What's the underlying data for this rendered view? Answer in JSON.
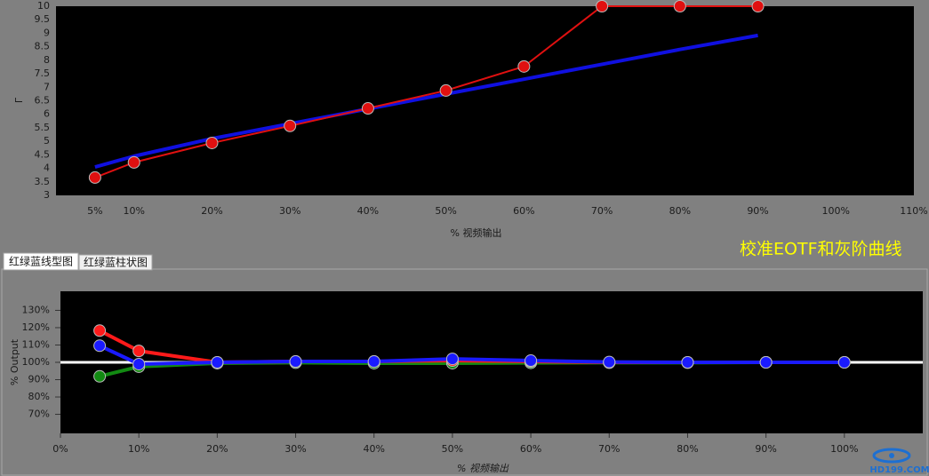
{
  "tabs": [
    "红绿蓝线型图",
    "红绿蓝柱状图"
  ],
  "caption": "校准EOTF和灰阶曲线",
  "watermark": "HD199.COM",
  "chart_data": [
    {
      "type": "line",
      "x_label": "% 视频输出",
      "y_label": "Γ",
      "x": [
        5,
        10,
        20,
        30,
        40,
        50,
        60,
        70,
        80,
        90
      ],
      "xlim": [
        0,
        110
      ],
      "xticks": [
        {
          "value": 5,
          "label": "5%"
        },
        {
          "value": 10,
          "label": "10%"
        },
        {
          "value": 20,
          "label": "20%"
        },
        {
          "value": 30,
          "label": "30%"
        },
        {
          "value": 40,
          "label": "40%"
        },
        {
          "value": 50,
          "label": "50%"
        },
        {
          "value": 60,
          "label": "60%"
        },
        {
          "value": 70,
          "label": "70%"
        },
        {
          "value": 80,
          "label": "80%"
        },
        {
          "value": 90,
          "label": "90%"
        },
        {
          "value": 100,
          "label": "100%"
        },
        {
          "value": 110,
          "label": "110%"
        }
      ],
      "ylim": [
        3,
        10
      ],
      "yticks": [
        3,
        3.5,
        4,
        4.5,
        5,
        5.5,
        6,
        6.5,
        7,
        7.5,
        8,
        8.5,
        9,
        9.5,
        10
      ],
      "series": [
        {
          "color": "#1010e0",
          "width": 4,
          "markers": false,
          "values": [
            4.05,
            4.45,
            5.1,
            5.65,
            6.2,
            6.75,
            7.3,
            7.85,
            8.4,
            8.92
          ]
        },
        {
          "color": "#e01010",
          "width": 2,
          "markers": true,
          "values": [
            3.66,
            4.22,
            4.94,
            5.57,
            6.22,
            6.88,
            7.77,
            10,
            10,
            10
          ]
        }
      ]
    },
    {
      "type": "line",
      "x_label": "% 视频输出",
      "y_label": "% Output",
      "x": [
        5,
        10,
        20,
        30,
        40,
        50,
        60,
        70,
        80,
        90,
        100
      ],
      "xlim": [
        0,
        110
      ],
      "xticks": [
        {
          "value": 0,
          "label": "0%"
        },
        {
          "value": 10,
          "label": "10%"
        },
        {
          "value": 20,
          "label": "20%"
        },
        {
          "value": 30,
          "label": "30%"
        },
        {
          "value": 40,
          "label": "40%"
        },
        {
          "value": 50,
          "label": "50%"
        },
        {
          "value": 60,
          "label": "60%"
        },
        {
          "value": 70,
          "label": "70%"
        },
        {
          "value": 80,
          "label": "80%"
        },
        {
          "value": 90,
          "label": "90%"
        },
        {
          "value": 100,
          "label": "100%"
        }
      ],
      "ylim": [
        59,
        141
      ],
      "yticks": [
        {
          "value": 70,
          "label": "70%"
        },
        {
          "value": 80,
          "label": "80%"
        },
        {
          "value": 90,
          "label": "90%"
        },
        {
          "value": 100,
          "label": "100%"
        },
        {
          "value": 110,
          "label": "110%"
        },
        {
          "value": 120,
          "label": "120%"
        },
        {
          "value": 130,
          "label": "130%"
        }
      ],
      "reference_line": 100,
      "series": [
        {
          "color": "#128a12",
          "width": 4,
          "markers": true,
          "values": [
            91.9,
            97.5,
            99.5,
            99.8,
            99.5,
            99.5,
            99.7,
            99.8,
            99.8,
            100,
            100
          ]
        },
        {
          "color": "#ff1a1a",
          "width": 4,
          "markers": true,
          "values": [
            118.3,
            106.6,
            100,
            100.5,
            100.5,
            101,
            100.5,
            100,
            100,
            100,
            100
          ]
        },
        {
          "color": "#1a1aff",
          "width": 4,
          "markers": true,
          "values": [
            109.6,
            99,
            100,
            100.5,
            100.5,
            102,
            101,
            100.2,
            100,
            100,
            100
          ]
        }
      ]
    }
  ]
}
